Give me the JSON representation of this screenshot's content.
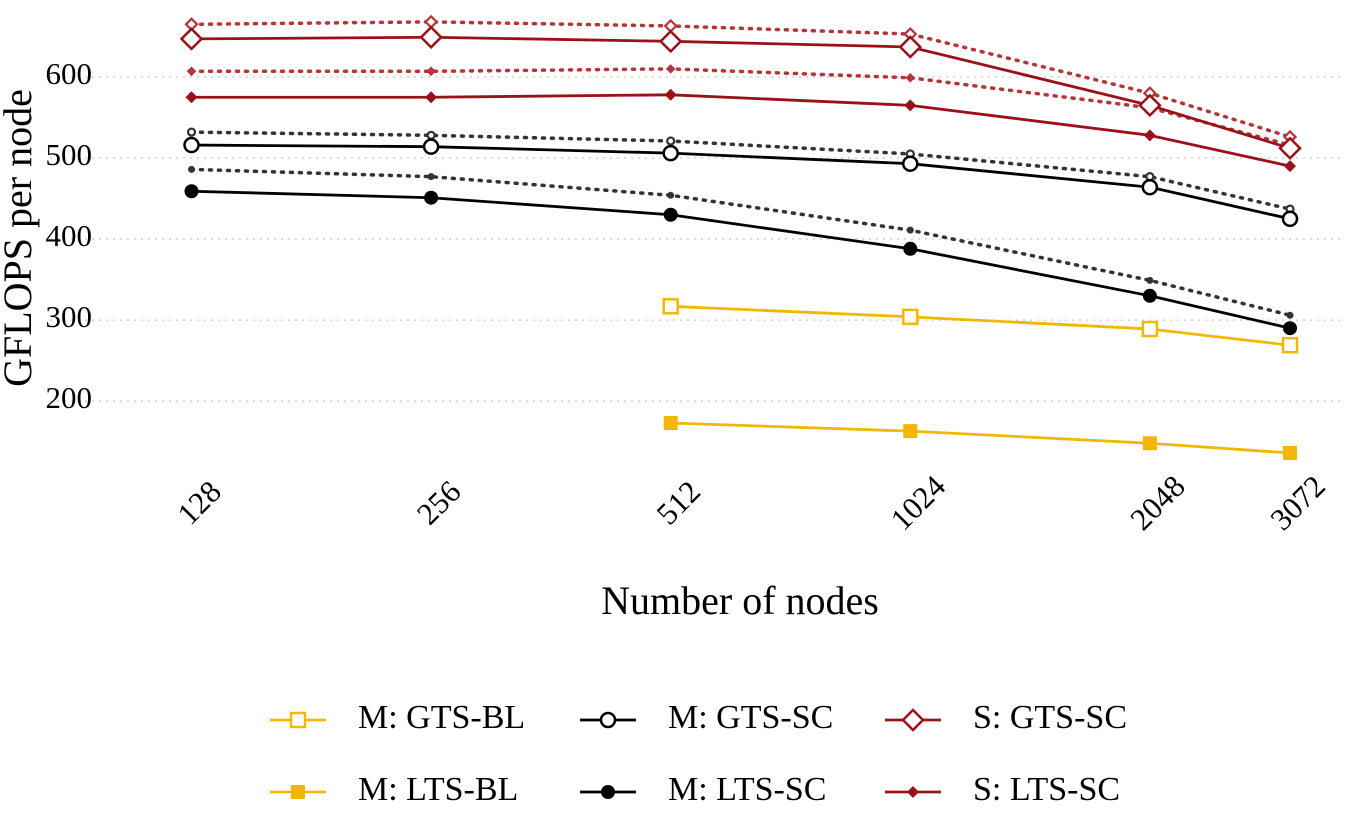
{
  "chart_data": {
    "type": "line",
    "xlabel": "Number of nodes",
    "ylabel": "GFLOPS per node",
    "x": [
      128,
      256,
      512,
      1024,
      2048,
      3072
    ],
    "xscale": "log",
    "xlim": [
      85,
      3550
    ],
    "xticks": [
      128,
      256,
      512,
      1024,
      2048,
      3072
    ],
    "ylim": [
      115,
      695
    ],
    "yticks": [
      200,
      300,
      400,
      500,
      600
    ],
    "grid": "y",
    "legend": "bottom",
    "series": [
      {
        "name": "M: GTS-BL",
        "color": "#f2b705",
        "marker": "square-open",
        "style": "solid",
        "values": [
          null,
          null,
          317,
          304,
          289,
          269
        ]
      },
      {
        "name": "M: LTS-BL",
        "color": "#f2b705",
        "marker": "square",
        "style": "solid",
        "values": [
          null,
          null,
          173,
          163,
          148,
          136
        ]
      },
      {
        "name": "M: GTS-SC",
        "color": "#000000",
        "marker": "circle-open",
        "style": "solid",
        "values": [
          516,
          514,
          506,
          493,
          464,
          425
        ]
      },
      {
        "name": "M: LTS-SC",
        "color": "#000000",
        "marker": "circle",
        "style": "solid",
        "values": [
          459,
          451,
          430,
          388,
          330,
          290
        ]
      },
      {
        "name": "S: GTS-SC",
        "color": "#9b1118",
        "marker": "diamond-open",
        "style": "solid",
        "values": [
          647,
          649,
          644,
          637,
          565,
          512
        ]
      },
      {
        "name": "S: LTS-SC",
        "color": "#9b1118",
        "marker": "diamond",
        "style": "solid",
        "values": [
          575,
          575,
          578,
          565,
          528,
          490
        ]
      },
      {
        "color": "#333333",
        "marker": "circle-open",
        "style": "dotted",
        "values": [
          532,
          528,
          521,
          505,
          477,
          437
        ]
      },
      {
        "color": "#333333",
        "marker": "circle",
        "style": "dotted",
        "values": [
          486,
          477,
          454,
          411,
          349,
          306
        ]
      },
      {
        "color": "#b5353c",
        "marker": "diamond-open",
        "style": "dotted",
        "values": [
          665,
          668,
          663,
          653,
          580,
          526
        ]
      },
      {
        "color": "#b5353c",
        "marker": "diamond",
        "style": "dotted",
        "values": [
          607,
          607,
          610,
          599,
          562,
          516
        ]
      }
    ]
  }
}
